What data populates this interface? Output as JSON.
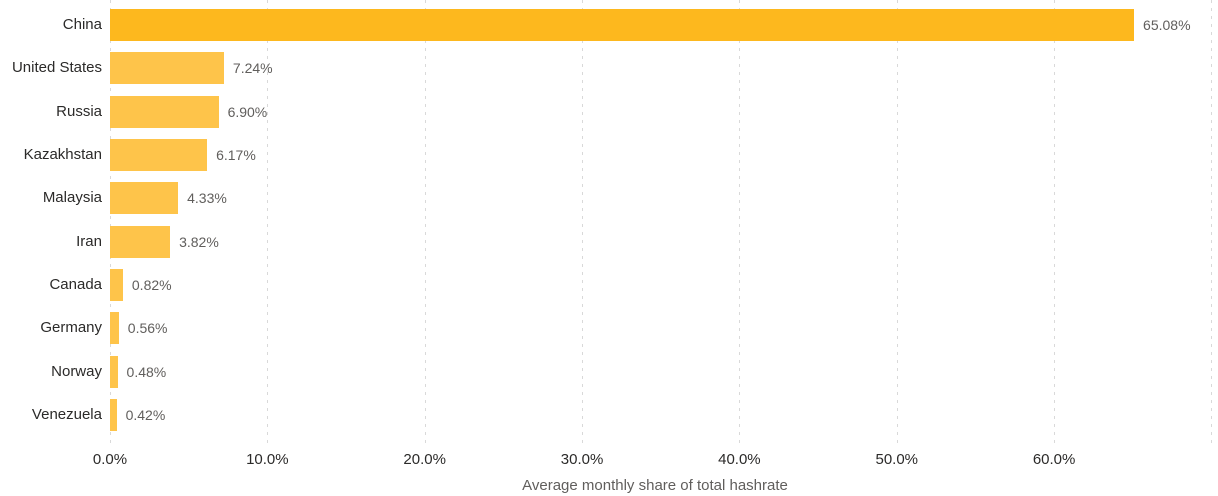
{
  "chart_data": {
    "type": "bar",
    "orientation": "horizontal",
    "title": "",
    "xlabel": "Average monthly share of total hashrate",
    "ylabel": "",
    "categories": [
      "China",
      "United States",
      "Russia",
      "Kazakhstan",
      "Malaysia",
      "Iran",
      "Canada",
      "Germany",
      "Norway",
      "Venezuela"
    ],
    "values": [
      65.08,
      7.24,
      6.9,
      6.17,
      4.33,
      3.82,
      0.82,
      0.56,
      0.48,
      0.42
    ],
    "value_labels": [
      "65.08%",
      "7.24%",
      "6.90%",
      "6.17%",
      "4.33%",
      "3.82%",
      "0.82%",
      "0.56%",
      "0.48%",
      "0.42%"
    ],
    "x_ticks": [
      {
        "label": "0.0%",
        "value": 0
      },
      {
        "label": "10.0%",
        "value": 10
      },
      {
        "label": "20.0%",
        "value": 20
      },
      {
        "label": "30.0%",
        "value": 30
      },
      {
        "label": "40.0%",
        "value": 40
      },
      {
        "label": "50.0%",
        "value": 50
      },
      {
        "label": "60.0%",
        "value": 60
      }
    ],
    "xlim": [
      0,
      70.4
    ],
    "grid": "vertical-dashed",
    "gridline_values": [
      0,
      10,
      20,
      30,
      40,
      50,
      60,
      70
    ],
    "legend": "none",
    "highlighted_category": "China",
    "colors": {
      "bar_highlight": "#FDB81E",
      "bar_default": "#FEC44A",
      "category_label": "#2B2A29",
      "value_label": "#605E5C",
      "tick_label": "#2B2A29",
      "axis_title": "#605E5C",
      "gridline": "#D9D9D9",
      "background": "#FFFFFF"
    }
  }
}
